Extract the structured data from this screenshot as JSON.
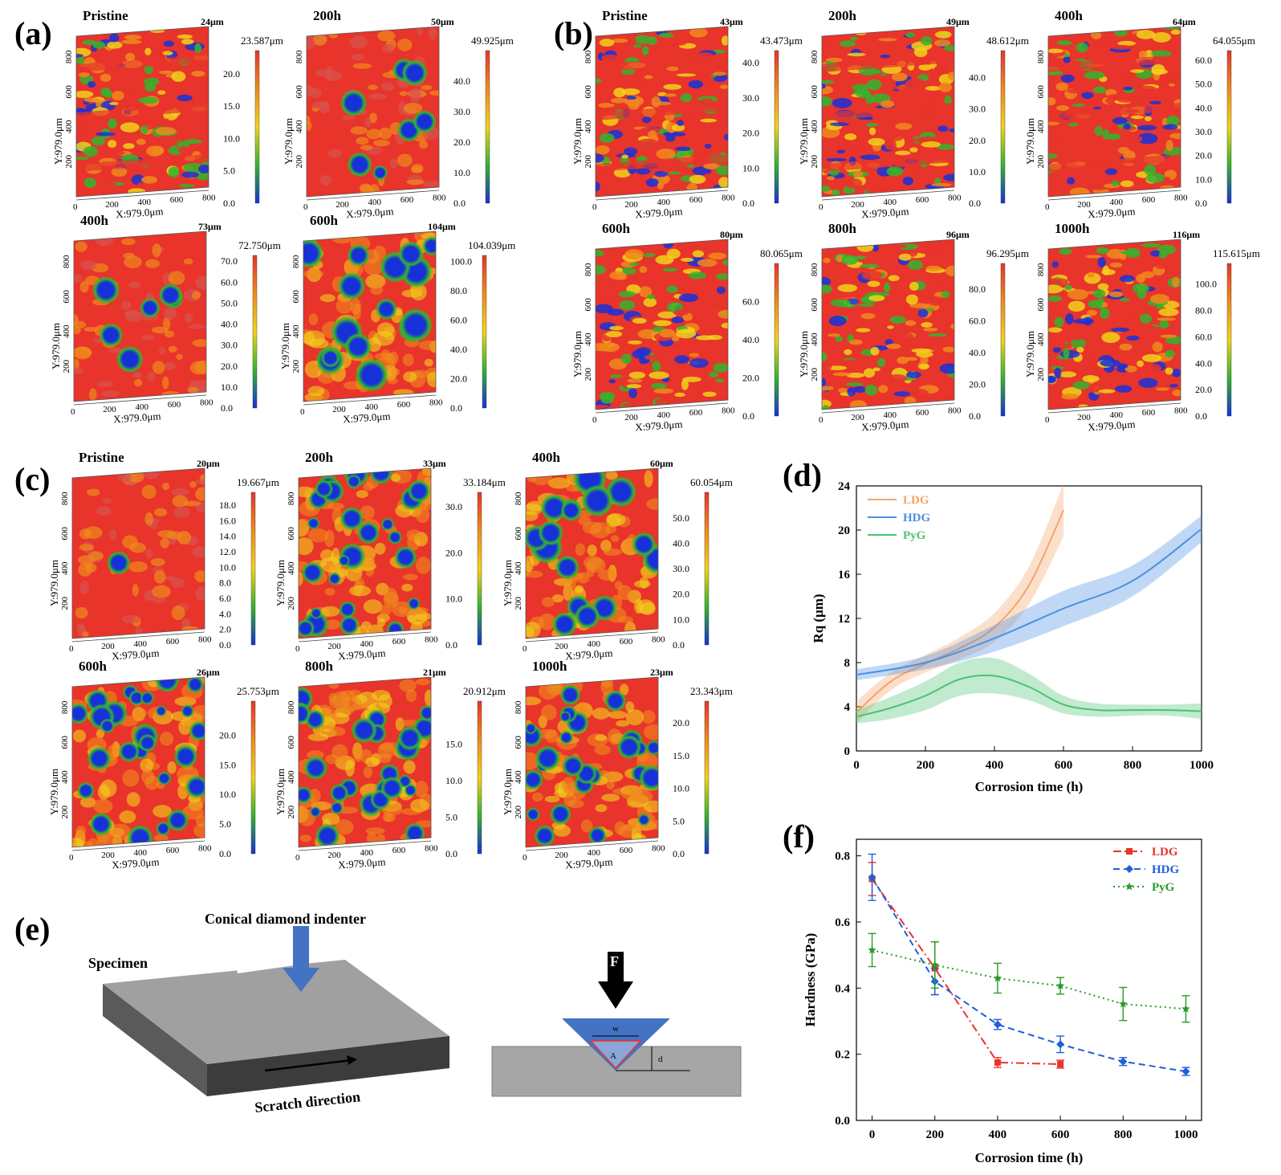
{
  "panels": {
    "a": {
      "label": "(a)",
      "maps": [
        {
          "title": "Pristine",
          "corner": "24μm",
          "cb_max": "23.587μm",
          "cb_ticks": [
            "20.0",
            "15.0",
            "10.0",
            "5.0",
            "0.0"
          ],
          "pattern": "bands"
        },
        {
          "title": "200h",
          "corner": "50μm",
          "cb_max": "49.925μm",
          "cb_ticks": [
            "40.0",
            "30.0",
            "20.0",
            "10.0",
            "0.0"
          ],
          "pattern": "pits"
        },
        {
          "title": "400h",
          "corner": "73μm",
          "cb_max": "72.750μm",
          "cb_ticks": [
            "70.0",
            "60.0",
            "50.0",
            "40.0",
            "30.0",
            "20.0",
            "10.0",
            "0.0"
          ],
          "pattern": "pits"
        },
        {
          "title": "600h",
          "corner": "104μm",
          "cb_max": "104.039μm",
          "cb_ticks": [
            "100.0",
            "80.0",
            "60.0",
            "40.0",
            "20.0",
            "0.0"
          ],
          "pattern": "bubbles"
        }
      ]
    },
    "b": {
      "label": "(b)",
      "maps": [
        {
          "title": "Pristine",
          "corner": "43μm",
          "cb_max": "43.473μm",
          "cb_ticks": [
            "40.0",
            "30.0",
            "20.0",
            "10.0",
            "0.0"
          ],
          "pattern": "bands"
        },
        {
          "title": "200h",
          "corner": "49μm",
          "cb_max": "48.612μm",
          "cb_ticks": [
            "40.0",
            "30.0",
            "20.0",
            "10.0",
            "0.0"
          ],
          "pattern": "bands"
        },
        {
          "title": "400h",
          "corner": "64μm",
          "cb_max": "64.055μm",
          "cb_ticks": [
            "60.0",
            "50.0",
            "40.0",
            "30.0",
            "20.0",
            "10.0",
            "0.0"
          ],
          "pattern": "bands"
        },
        {
          "title": "600h",
          "corner": "80μm",
          "cb_max": "80.065μm",
          "cb_ticks": [
            "60.0",
            "40.0",
            "20.0",
            "0.0"
          ],
          "pattern": "mottled"
        },
        {
          "title": "800h",
          "corner": "96μm",
          "cb_max": "96.295μm",
          "cb_ticks": [
            "80.0",
            "60.0",
            "40.0",
            "20.0",
            "0.0"
          ],
          "pattern": "mottled"
        },
        {
          "title": "1000h",
          "corner": "116μm",
          "cb_max": "115.615μm",
          "cb_ticks": [
            "100.0",
            "80.0",
            "60.0",
            "40.0",
            "20.0",
            "0.0"
          ],
          "pattern": "mottled"
        }
      ]
    },
    "c": {
      "label": "(c)",
      "maps": [
        {
          "title": "Pristine",
          "corner": "20μm",
          "cb_max": "19.667μm",
          "cb_ticks": [
            "18.0",
            "16.0",
            "14.0",
            "12.0",
            "10.0",
            "8.0",
            "6.0",
            "4.0",
            "2.0",
            "0.0"
          ],
          "pattern": "flat"
        },
        {
          "title": "200h",
          "corner": "33μm",
          "cb_max": "33.184μm",
          "cb_ticks": [
            "30.0",
            "20.0",
            "10.0",
            "0.0"
          ],
          "pattern": "cells"
        },
        {
          "title": "400h",
          "corner": "60μm",
          "cb_max": "60.054μm",
          "cb_ticks": [
            "50.0",
            "40.0",
            "30.0",
            "20.0",
            "10.0",
            "0.0"
          ],
          "pattern": "bubbles"
        },
        {
          "title": "600h",
          "corner": "26μm",
          "cb_max": "25.753μm",
          "cb_ticks": [
            "20.0",
            "15.0",
            "10.0",
            "5.0",
            "0.0"
          ],
          "pattern": "cells"
        },
        {
          "title": "800h",
          "corner": "21μm",
          "cb_max": "20.912μm",
          "cb_ticks": [
            "15.0",
            "10.0",
            "5.0",
            "0.0"
          ],
          "pattern": "cells"
        },
        {
          "title": "1000h",
          "corner": "23μm",
          "cb_max": "23.343μm",
          "cb_ticks": [
            "20.0",
            "15.0",
            "10.0",
            "5.0",
            "0.0"
          ],
          "pattern": "cells"
        }
      ]
    },
    "axis": {
      "x_label": "X:979.0μm",
      "y_label": "Y:979.0μm",
      "x_ticks": [
        "0",
        "200",
        "400",
        "600",
        "800"
      ],
      "y_ticks": [
        "200",
        "400",
        "600",
        "800"
      ]
    },
    "e": {
      "label": "(e)",
      "indenter": "Conical diamond indenter",
      "specimen": "Specimen",
      "scratch": "Scratch direction",
      "force": "F",
      "width": "w",
      "area": "A",
      "depth": "d"
    }
  },
  "colors": {
    "red": "#e8342b",
    "orange": "#f08a1c",
    "yellow": "#f2d21a",
    "green": "#33b52d",
    "blue": "#1731d8",
    "ldg": "#f5a46b",
    "hdg": "#4a90e2",
    "pyg": "#4cc272"
  },
  "chart_data": [
    {
      "panel": "(d)",
      "type": "area",
      "title": "",
      "xlabel": "Corrosion time (h)",
      "ylabel": "Rq (μm)",
      "xlim": [
        0,
        1000
      ],
      "ylim": [
        0,
        24
      ],
      "xticks": [
        0,
        200,
        400,
        600,
        800,
        1000
      ],
      "yticks": [
        0,
        4,
        8,
        12,
        16,
        20,
        24
      ],
      "legend": "top-left",
      "series": [
        {
          "name": "LDG",
          "color": "#f5a46b",
          "x": [
            0,
            100,
            200,
            300,
            400,
            500,
            600
          ],
          "y": [
            3.5,
            6.3,
            7.9,
            9.3,
            11.2,
            15.0,
            21.8
          ],
          "band": [
            1.0,
            0.8,
            0.8,
            1.0,
            1.3,
            1.7,
            2.4
          ]
        },
        {
          "name": "HDG",
          "color": "#4a90e2",
          "x": [
            0,
            200,
            400,
            600,
            800,
            1000
          ],
          "y": [
            6.9,
            8.0,
            10.2,
            12.9,
            15.4,
            20.1
          ],
          "band": [
            0.5,
            0.6,
            1.2,
            1.6,
            1.4,
            1.2
          ]
        },
        {
          "name": "PyG",
          "color": "#4cc272",
          "x": [
            0,
            100,
            200,
            300,
            400,
            500,
            600,
            700,
            800,
            900,
            1000
          ],
          "y": [
            3.1,
            3.9,
            5.0,
            6.5,
            6.8,
            5.8,
            4.2,
            3.7,
            3.7,
            3.7,
            3.6
          ],
          "band": [
            0.6,
            1.0,
            1.3,
            1.5,
            1.6,
            1.2,
            0.8,
            0.6,
            0.5,
            0.5,
            0.7
          ]
        }
      ]
    },
    {
      "panel": "(f)",
      "type": "line",
      "title": "",
      "xlabel": "Corrosion time (h)",
      "ylabel": "Hardness (GPa)",
      "xlim": [
        -50,
        1050
      ],
      "ylim": [
        0,
        0.85
      ],
      "xticks": [
        0,
        200,
        400,
        600,
        800,
        1000
      ],
      "yticks": [
        0.0,
        0.2,
        0.4,
        0.6,
        0.8
      ],
      "ytick_labels": [
        "0.0",
        "0.2",
        "0.4",
        "0.6",
        "0.8"
      ],
      "legend": "top-right",
      "series": [
        {
          "name": "LDG",
          "color": "#e8342b",
          "marker": "square",
          "dash": "10,4,2,4",
          "x": [
            0,
            200,
            400,
            600
          ],
          "y": [
            0.73,
            0.46,
            0.175,
            0.17
          ],
          "err": [
            0.05,
            0.08,
            0.015,
            0.012
          ]
        },
        {
          "name": "HDG",
          "color": "#1f5fd8",
          "marker": "diamond",
          "dash": "8,5",
          "x": [
            0,
            200,
            400,
            600,
            800,
            1000
          ],
          "y": [
            0.735,
            0.42,
            0.29,
            0.23,
            0.178,
            0.148
          ],
          "err": [
            0.07,
            0.04,
            0.015,
            0.025,
            0.012,
            0.012
          ]
        },
        {
          "name": "PyG",
          "color": "#2a9a2a",
          "marker": "star",
          "dash": "2,4",
          "x": [
            0,
            200,
            400,
            600,
            800,
            1000
          ],
          "y": [
            0.515,
            0.47,
            0.43,
            0.407,
            0.352,
            0.337
          ],
          "err": [
            0.05,
            0.07,
            0.045,
            0.025,
            0.05,
            0.04
          ]
        }
      ]
    }
  ]
}
